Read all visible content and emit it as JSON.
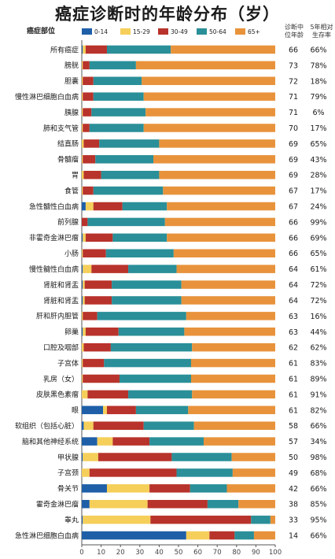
{
  "chart_data": {
    "type": "bar",
    "stacked": "horizontal-100",
    "title": "癌症诊断时的年龄分布（岁）",
    "header": {
      "site": "癌症部位",
      "median_age": "诊断中\n位年龄",
      "survival": "5年相对\n生存率"
    },
    "legend": [
      "0-14",
      "15-29",
      "30-49",
      "50-64",
      "65+"
    ],
    "colors": [
      "#1f5fa8",
      "#f5cf5a",
      "#b8332b",
      "#2a8f98",
      "#e8933c"
    ],
    "xlim": [
      0,
      100
    ],
    "xticks": [
      "0",
      "10",
      "20",
      "30",
      "40",
      "50",
      "60",
      "70",
      "80",
      "90",
      "100"
    ],
    "rows": [
      {
        "label": "所有癌症",
        "values": [
          0.5,
          1.5,
          11,
          33,
          54
        ],
        "median": "66",
        "survival": "66%"
      },
      {
        "label": "膀胱",
        "values": [
          0,
          0.5,
          3.5,
          24,
          72
        ],
        "median": "73",
        "survival": "78%"
      },
      {
        "label": "胆囊",
        "values": [
          0,
          0.5,
          5.5,
          25,
          69
        ],
        "median": "72",
        "survival": "18%"
      },
      {
        "label": "慢性淋巴细胞白血病",
        "values": [
          0,
          0.5,
          5.5,
          26,
          68
        ],
        "median": "71",
        "survival": "79%"
      },
      {
        "label": "胰腺",
        "values": [
          0,
          0.5,
          4.5,
          28,
          67
        ],
        "median": "71",
        "survival": "6%"
      },
      {
        "label": "肺和支气管",
        "values": [
          0,
          0.5,
          3.5,
          28,
          68
        ],
        "median": "70",
        "survival": "17%"
      },
      {
        "label": "结直肠",
        "values": [
          0,
          1,
          8,
          31,
          60
        ],
        "median": "69",
        "survival": "65%"
      },
      {
        "label": "骨髓瘤",
        "values": [
          0,
          0.5,
          6.5,
          30,
          63
        ],
        "median": "69",
        "survival": "43%"
      },
      {
        "label": "胃",
        "values": [
          0,
          1,
          9,
          30,
          60
        ],
        "median": "69",
        "survival": "28%"
      },
      {
        "label": "食管",
        "values": [
          0,
          0.5,
          5.5,
          36,
          58
        ],
        "median": "67",
        "survival": "17%"
      },
      {
        "label": "急性髓性白血病",
        "values": [
          2,
          4,
          15,
          23,
          56
        ],
        "median": "67",
        "survival": "24%"
      },
      {
        "label": "前列腺",
        "values": [
          0,
          0,
          3,
          40,
          57
        ],
        "median": "66",
        "survival": "99%"
      },
      {
        "label": "非霍奇金淋巴瘤",
        "values": [
          0.5,
          1.5,
          14,
          28,
          56
        ],
        "median": "66",
        "survival": "69%"
      },
      {
        "label": "小肠",
        "values": [
          0,
          0.5,
          12,
          35,
          52.5
        ],
        "median": "66",
        "survival": "65%"
      },
      {
        "label": "慢性髓性白血病",
        "values": [
          0.5,
          4.5,
          19,
          25,
          51
        ],
        "median": "64",
        "survival": "61%"
      },
      {
        "label": "肾脏和肾盂",
        "values": [
          0.5,
          1,
          14,
          36,
          48.5
        ],
        "median": "64",
        "survival": "72%"
      },
      {
        "label": "肾脏和肾盂",
        "values": [
          0.5,
          1,
          14,
          36,
          48.5
        ],
        "median": "64",
        "survival": "72%"
      },
      {
        "label": "肝和肝内胆管",
        "values": [
          0,
          0.5,
          7.5,
          46,
          46
        ],
        "median": "63",
        "survival": "16%"
      },
      {
        "label": "卵巢",
        "values": [
          0.5,
          1.5,
          17,
          34,
          47
        ],
        "median": "63",
        "survival": "44%"
      },
      {
        "label": "口腔及咽部",
        "values": [
          0,
          1,
          14,
          42,
          43
        ],
        "median": "62",
        "survival": "62%"
      },
      {
        "label": "子宫体",
        "values": [
          0,
          0.5,
          11,
          45,
          43.5
        ],
        "median": "61",
        "survival": "83%"
      },
      {
        "label": "乳房（女）",
        "values": [
          0,
          0.5,
          19,
          37,
          43.5
        ],
        "median": "61",
        "survival": "89%"
      },
      {
        "label": "皮肤黑色素瘤",
        "values": [
          0,
          3,
          21,
          33,
          43
        ],
        "median": "61",
        "survival": "91%"
      },
      {
        "label": "眼",
        "values": [
          11,
          2,
          15,
          27,
          45
        ],
        "median": "61",
        "survival": "82%"
      },
      {
        "label": "软组织（包括心脏）",
        "values": [
          1,
          5,
          26,
          26,
          42
        ],
        "median": "58",
        "survival": "66%"
      },
      {
        "label": "脑和其他神经系统",
        "values": [
          8,
          8,
          19,
          28,
          37
        ],
        "median": "57",
        "survival": "34%"
      },
      {
        "label": "甲状腺",
        "values": [
          0.5,
          8,
          38,
          31,
          22.5
        ],
        "median": "50",
        "survival": "98%"
      },
      {
        "label": "子宫颈",
        "values": [
          0,
          4,
          45,
          29,
          22
        ],
        "median": "49",
        "survival": "68%"
      },
      {
        "label": "骨关节",
        "values": [
          13,
          22,
          21,
          19,
          25
        ],
        "median": "42",
        "survival": "66%"
      },
      {
        "label": "霍奇金淋巴瘤",
        "values": [
          4,
          30,
          31,
          16,
          19
        ],
        "median": "38",
        "survival": "85%"
      },
      {
        "label": "睾丸",
        "values": [
          0.5,
          35,
          52,
          10,
          2.5
        ],
        "median": "33",
        "survival": "95%"
      },
      {
        "label": "急性淋巴细胞白血病",
        "values": [
          54,
          12,
          13,
          10,
          11
        ],
        "median": "14",
        "survival": "66%"
      }
    ]
  }
}
